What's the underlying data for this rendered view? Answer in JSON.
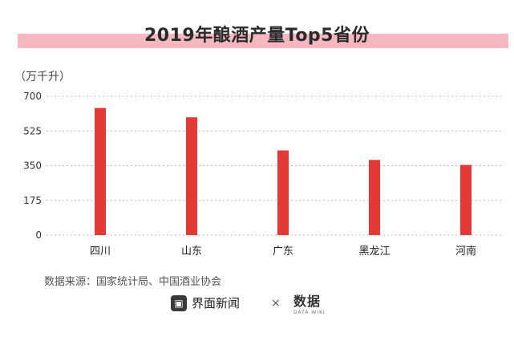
{
  "chart_data": {
    "type": "bar",
    "title": "2019年酿酒产量Top5省份",
    "unit_label": "（万千升）",
    "categories": [
      "四川",
      "山东",
      "广东",
      "黑龙江",
      "河南"
    ],
    "values": [
      641,
      594,
      427,
      379,
      354
    ],
    "ylim": [
      0,
      700
    ],
    "yticks": [
      "0",
      "175",
      "350",
      "525",
      "700"
    ],
    "grid": true,
    "legend": "none",
    "bar_color": "#e53935",
    "source": "数据来源：国家统计局、中国酒业协会"
  },
  "branding": {
    "logo_icon": "jiemian-logo-icon",
    "name": "界面新闻",
    "separator": "×",
    "partner_name": "数据",
    "partner_sub": "DATA WIKI"
  }
}
